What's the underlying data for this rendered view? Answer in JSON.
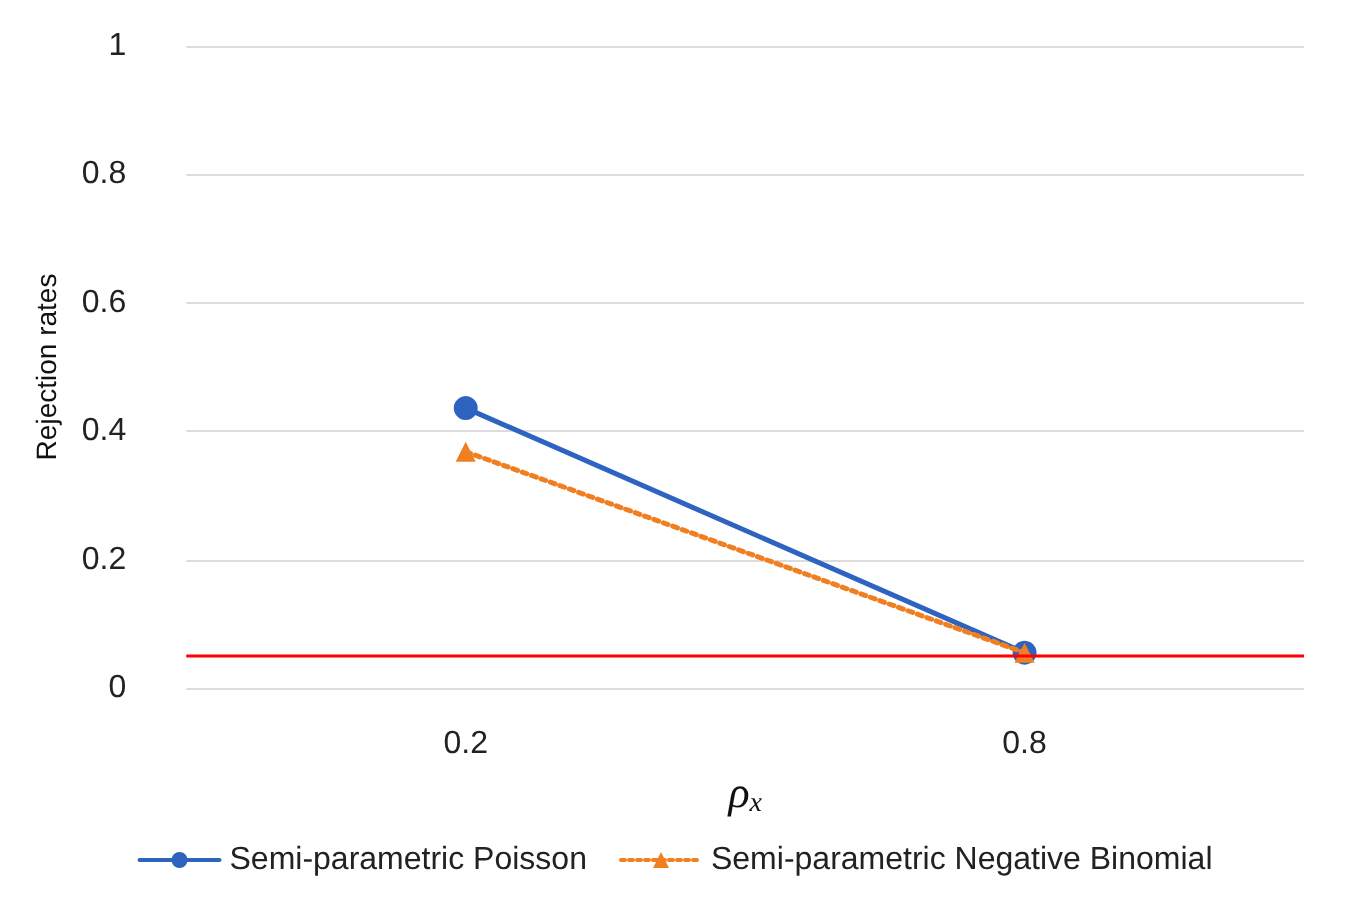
{
  "chart_data": {
    "type": "line",
    "xlabel": "ρ$_{x}$",
    "ylabel": "Rejection rates",
    "categories": [
      "0.2",
      "0.8"
    ],
    "series": [
      {
        "name": "Semi-parametric Poisson",
        "color": "#2e64c0",
        "values": [
          0.436,
          0.055
        ],
        "marker": "circle",
        "line_style": "solid"
      },
      {
        "name": "Semi-parametric Negative Binomial",
        "color": "#f07f22",
        "values": [
          0.368,
          0.055
        ],
        "marker": "triangle",
        "line_style": "dotted"
      }
    ],
    "ylim": [
      0,
      1
    ],
    "yticks": [
      0,
      0.2,
      0.4,
      0.6,
      0.8,
      1
    ],
    "grid": "y",
    "legend": "bottom",
    "ref_lines": [
      {
        "axis": "y",
        "value": 0.05,
        "label": null,
        "color": "#ff0000"
      }
    ]
  }
}
